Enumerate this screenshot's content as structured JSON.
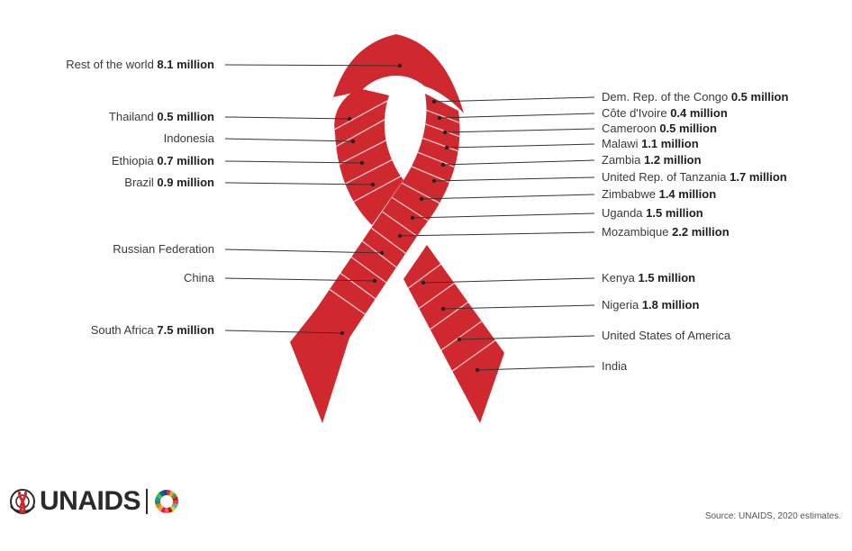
{
  "labels_left": [
    {
      "id": "rest-of-world",
      "name": "Rest of the world",
      "value": "8.1 million"
    },
    {
      "id": "thailand",
      "name": "Thailand",
      "value": "0.5 million"
    },
    {
      "id": "indonesia",
      "name": "Indonesia",
      "value": ""
    },
    {
      "id": "ethiopia",
      "name": "Ethiopia",
      "value": "0.7 million"
    },
    {
      "id": "brazil",
      "name": "Brazil",
      "value": "0.9 million"
    },
    {
      "id": "russian-federation",
      "name": "Russian Federation",
      "value": ""
    },
    {
      "id": "china",
      "name": "China",
      "value": ""
    },
    {
      "id": "south-africa",
      "name": "South Africa",
      "value": "7.5 million"
    }
  ],
  "labels_right": [
    {
      "id": "dr-congo",
      "name": "Dem. Rep. of the Congo",
      "value": "0.5 million"
    },
    {
      "id": "cote-divoire",
      "name": "Côte d'Ivoire",
      "value": "0.4 million"
    },
    {
      "id": "cameroon",
      "name": "Cameroon",
      "value": "0.5 million"
    },
    {
      "id": "malawi",
      "name": "Malawi",
      "value": "1.1 million"
    },
    {
      "id": "zambia",
      "name": "Zambia",
      "value": "1.2 million"
    },
    {
      "id": "tanzania",
      "name": "United Rep. of Tanzania",
      "value": "1.7 million"
    },
    {
      "id": "zimbabwe",
      "name": "Zimbabwe",
      "value": "1.4 million"
    },
    {
      "id": "uganda",
      "name": "Uganda",
      "value": "1.5 million"
    },
    {
      "id": "mozambique",
      "name": "Mozambique",
      "value": "2.2 million"
    },
    {
      "id": "kenya",
      "name": "Kenya",
      "value": "1.5 million"
    },
    {
      "id": "nigeria",
      "name": "Nigeria",
      "value": "1.8 million"
    },
    {
      "id": "usa",
      "name": "United States of America",
      "value": ""
    },
    {
      "id": "india",
      "name": "India",
      "value": ""
    }
  ],
  "colors": {
    "ribbon": "#d0282f",
    "line": "#333333",
    "stripe": "#f3c9cb"
  },
  "logo": {
    "text": "UNAIDS",
    "emblem": "un-emblem-icon",
    "sdg": "sdg-wheel-icon"
  },
  "source": "Source: UNAIDS, 2020 estimates."
}
